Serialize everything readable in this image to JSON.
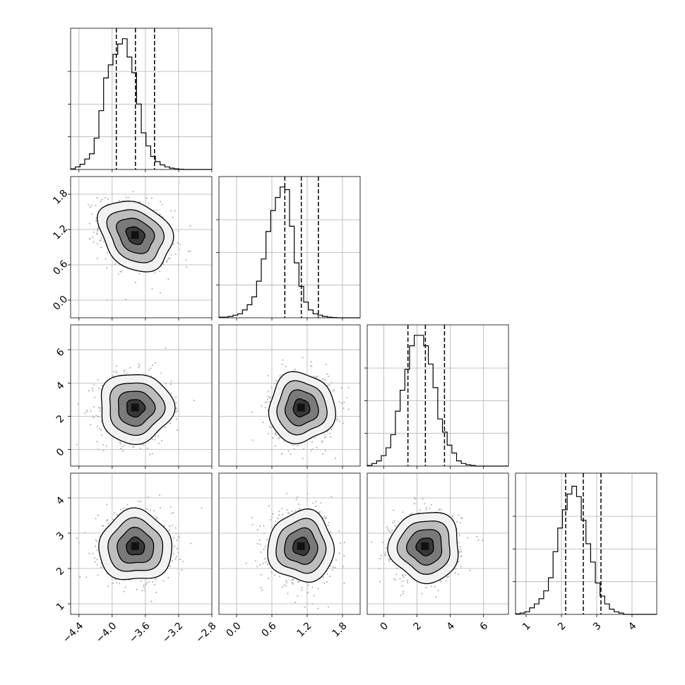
{
  "chart_data": {
    "type": "corner",
    "description_note": "",
    "parameters": [
      {
        "range": [
          -4.5,
          -2.8
        ],
        "ticks": [
          -4.4,
          -4.0,
          -3.6,
          -3.2,
          -2.8
        ],
        "tick_labels": [
          "−4.4",
          "−4.0",
          "−3.6",
          "−3.2",
          "−2.8"
        ],
        "median": -3.72,
        "quantile_low": -3.95,
        "quantile_high": -3.49,
        "hist_edges_start": -4.5,
        "hist_bin_width": 0.0567,
        "hist_values": [
          0.005,
          0.02,
          0.04,
          0.08,
          0.12,
          0.24,
          0.45,
          0.7,
          0.8,
          0.88,
          0.96,
          1.0,
          0.86,
          0.74,
          0.5,
          0.28,
          0.18,
          0.1,
          0.06,
          0.035,
          0.02,
          0.01,
          0.005,
          0.002,
          0.0,
          0.0,
          0.0,
          0.0,
          0.0,
          0.0
        ]
      },
      {
        "range": [
          -0.3,
          2.1
        ],
        "ticks": [
          0.0,
          0.6,
          1.2,
          1.8
        ],
        "tick_labels": [
          "0.0",
          "0.6",
          "1.2",
          "1.8"
        ],
        "median": 1.1,
        "quantile_low": 0.82,
        "quantile_high": 1.39,
        "hist_edges_start": -0.3,
        "hist_bin_width": 0.08,
        "hist_values": [
          0.005,
          0.005,
          0.01,
          0.02,
          0.03,
          0.06,
          0.1,
          0.16,
          0.28,
          0.45,
          0.66,
          0.82,
          0.92,
          1.0,
          0.98,
          0.7,
          0.42,
          0.24,
          0.12,
          0.06,
          0.03,
          0.02,
          0.01,
          0.005,
          0.002,
          0.0,
          0.0,
          0.0,
          0.0,
          0.0
        ]
      },
      {
        "range": [
          -1.0,
          7.5
        ],
        "ticks": [
          0,
          2,
          4,
          6
        ],
        "tick_labels": [
          "0",
          "2",
          "4",
          "6"
        ],
        "median": 2.5,
        "quantile_low": 1.45,
        "quantile_high": 3.65,
        "hist_edges_start": -1.0,
        "hist_bin_width": 0.283,
        "hist_values": [
          0.005,
          0.02,
          0.04,
          0.08,
          0.14,
          0.24,
          0.42,
          0.58,
          0.74,
          0.92,
          1.0,
          1.0,
          0.92,
          0.78,
          0.6,
          0.36,
          0.26,
          0.16,
          0.1,
          0.04,
          0.02,
          0.01,
          0.005,
          0.0,
          0.0,
          0.0,
          0.0,
          0.0,
          0.0,
          0.0
        ]
      },
      {
        "range": [
          0.7,
          4.7
        ],
        "ticks": [
          1,
          2,
          3,
          4
        ],
        "tick_labels": [
          "1",
          "2",
          "3",
          "4"
        ],
        "median": 2.62,
        "quantile_low": 2.12,
        "quantile_high": 3.12,
        "hist_edges_start": 0.7,
        "hist_bin_width": 0.133,
        "hist_values": [
          0.005,
          0.01,
          0.02,
          0.05,
          0.08,
          0.12,
          0.18,
          0.28,
          0.48,
          0.66,
          0.8,
          0.92,
          0.98,
          0.9,
          0.72,
          0.54,
          0.4,
          0.24,
          0.14,
          0.08,
          0.04,
          0.02,
          0.01,
          0.0,
          0.0,
          0.0,
          0.0,
          0.0,
          0.0,
          0.0
        ]
      }
    ],
    "pairs": [
      {
        "x": 0,
        "y": 1,
        "center": [
          -3.72,
          1.1
        ],
        "sd": [
          0.22,
          0.3
        ],
        "corr": -0.25
      },
      {
        "x": 0,
        "y": 2,
        "center": [
          -3.72,
          2.5
        ],
        "sd": [
          0.22,
          1.05
        ],
        "corr": 0.0
      },
      {
        "x": 1,
        "y": 2,
        "center": [
          1.1,
          2.5
        ],
        "sd": [
          0.28,
          1.05
        ],
        "corr": 0.0
      },
      {
        "x": 0,
        "y": 3,
        "center": [
          -3.72,
          2.62
        ],
        "sd": [
          0.22,
          0.5
        ],
        "corr": 0.0
      },
      {
        "x": 1,
        "y": 3,
        "center": [
          1.1,
          2.62
        ],
        "sd": [
          0.28,
          0.5
        ],
        "corr": 0.0
      },
      {
        "x": 2,
        "y": 3,
        "center": [
          2.5,
          2.62
        ],
        "sd": [
          1.05,
          0.5
        ],
        "corr": 0.0
      }
    ],
    "contour_levels_sigma": [
      0.5,
      1.0,
      1.5,
      2.0
    ],
    "grid": true,
    "colors": {
      "line": "#000000",
      "grid": "#b0b0b0",
      "points": "#b8b8b8"
    }
  }
}
